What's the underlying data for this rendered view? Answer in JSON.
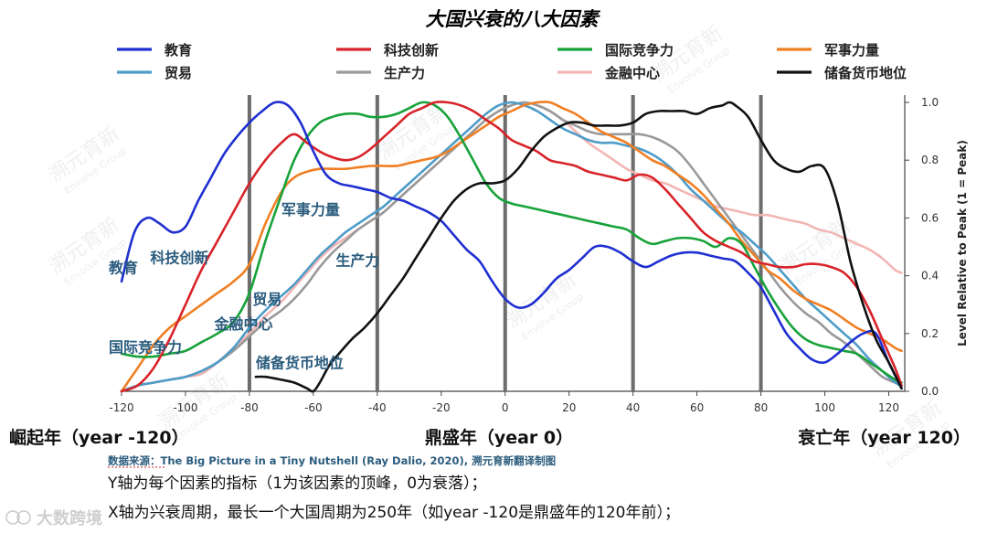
{
  "chart_data": {
    "type": "line",
    "title": "大国兴衰的八大因素",
    "ylabel": "Level Relative to Peak (1 = Peak)",
    "x_ticks": [
      -120,
      -100,
      -80,
      -60,
      -40,
      -20,
      0,
      20,
      40,
      60,
      80,
      100,
      120
    ],
    "y_ticks": [
      "0.0",
      "0.2",
      "0.4",
      "0.6",
      "0.8",
      "1.0"
    ],
    "xlim": [
      -120,
      125
    ],
    "ylim": [
      0,
      1.0
    ],
    "vertical_markers": [
      -80,
      -40,
      0,
      40,
      80
    ],
    "legend_position": "top",
    "series": [
      {
        "name": "教育",
        "color": "#1f2fd0",
        "x": [
          -120,
          -116,
          -112,
          -108,
          -104,
          -100,
          -96,
          -92,
          -88,
          -84,
          -80,
          -76,
          -72,
          -68,
          -64,
          -60,
          -56,
          -52,
          -48,
          -44,
          -40,
          -36,
          -32,
          -28,
          -24,
          -20,
          -16,
          -12,
          -8,
          -4,
          0,
          4,
          8,
          12,
          16,
          20,
          24,
          28,
          32,
          36,
          40,
          44,
          48,
          52,
          56,
          60,
          64,
          68,
          72,
          76,
          80,
          84,
          88,
          92,
          96,
          100,
          104,
          108,
          112,
          116,
          120,
          124
        ],
        "y": [
          0.38,
          0.55,
          0.6,
          0.58,
          0.55,
          0.57,
          0.66,
          0.74,
          0.82,
          0.88,
          0.93,
          0.97,
          1.0,
          0.99,
          0.93,
          0.83,
          0.75,
          0.72,
          0.71,
          0.7,
          0.69,
          0.67,
          0.66,
          0.64,
          0.62,
          0.59,
          0.54,
          0.49,
          0.45,
          0.38,
          0.32,
          0.29,
          0.3,
          0.34,
          0.39,
          0.42,
          0.46,
          0.5,
          0.5,
          0.48,
          0.45,
          0.43,
          0.45,
          0.47,
          0.48,
          0.48,
          0.47,
          0.46,
          0.45,
          0.41,
          0.36,
          0.28,
          0.2,
          0.15,
          0.11,
          0.1,
          0.13,
          0.17,
          0.2,
          0.2,
          0.1,
          0.01
        ]
      },
      {
        "name": "科技创新",
        "color": "#d8232a",
        "x": [
          -120,
          -115,
          -110,
          -105,
          -100,
          -95,
          -90,
          -85,
          -80,
          -75,
          -70,
          -66,
          -62,
          -58,
          -54,
          -50,
          -46,
          -42,
          -38,
          -34,
          -30,
          -26,
          -22,
          -18,
          -14,
          -10,
          -6,
          -2,
          2,
          6,
          10,
          14,
          18,
          22,
          26,
          30,
          34,
          38,
          42,
          46,
          50,
          54,
          58,
          62,
          66,
          70,
          74,
          78,
          82,
          86,
          90,
          94,
          98,
          102,
          106,
          110,
          114,
          118,
          122,
          124
        ],
        "y": [
          0.0,
          0.02,
          0.08,
          0.18,
          0.3,
          0.42,
          0.52,
          0.62,
          0.72,
          0.8,
          0.86,
          0.89,
          0.86,
          0.83,
          0.81,
          0.8,
          0.81,
          0.84,
          0.88,
          0.92,
          0.96,
          0.98,
          1.0,
          1.0,
          0.99,
          0.97,
          0.94,
          0.91,
          0.87,
          0.85,
          0.83,
          0.8,
          0.79,
          0.78,
          0.76,
          0.75,
          0.74,
          0.73,
          0.75,
          0.74,
          0.7,
          0.65,
          0.6,
          0.55,
          0.52,
          0.5,
          0.48,
          0.45,
          0.44,
          0.43,
          0.43,
          0.44,
          0.44,
          0.43,
          0.41,
          0.36,
          0.28,
          0.18,
          0.08,
          0.02
        ]
      },
      {
        "name": "国际竞争力",
        "color": "#18a23a",
        "x": [
          -120,
          -115,
          -110,
          -105,
          -100,
          -95,
          -90,
          -85,
          -80,
          -75,
          -70,
          -66,
          -62,
          -58,
          -54,
          -50,
          -46,
          -42,
          -38,
          -34,
          -30,
          -26,
          -22,
          -18,
          -14,
          -10,
          -6,
          -2,
          2,
          6,
          10,
          14,
          18,
          22,
          26,
          30,
          34,
          38,
          42,
          46,
          50,
          54,
          58,
          62,
          66,
          70,
          74,
          78,
          82,
          86,
          90,
          94,
          98,
          102,
          106,
          110,
          114,
          118,
          122,
          124
        ],
        "y": [
          0.13,
          0.12,
          0.12,
          0.13,
          0.14,
          0.17,
          0.2,
          0.24,
          0.34,
          0.52,
          0.68,
          0.8,
          0.88,
          0.93,
          0.95,
          0.96,
          0.96,
          0.95,
          0.95,
          0.96,
          0.98,
          1.0,
          0.99,
          0.95,
          0.88,
          0.8,
          0.72,
          0.67,
          0.65,
          0.64,
          0.63,
          0.62,
          0.61,
          0.6,
          0.59,
          0.58,
          0.57,
          0.56,
          0.53,
          0.51,
          0.52,
          0.53,
          0.53,
          0.52,
          0.5,
          0.53,
          0.51,
          0.43,
          0.35,
          0.28,
          0.22,
          0.18,
          0.16,
          0.15,
          0.14,
          0.13,
          0.1,
          0.07,
          0.04,
          0.03
        ]
      },
      {
        "name": "军事力量",
        "color": "#f07f23",
        "x": [
          -120,
          -115,
          -110,
          -105,
          -100,
          -95,
          -90,
          -85,
          -80,
          -75,
          -70,
          -66,
          -62,
          -58,
          -54,
          -50,
          -46,
          -42,
          -38,
          -34,
          -30,
          -26,
          -22,
          -18,
          -14,
          -10,
          -6,
          -2,
          2,
          6,
          10,
          14,
          18,
          22,
          26,
          30,
          34,
          38,
          42,
          46,
          50,
          54,
          58,
          62,
          66,
          70,
          74,
          78,
          82,
          86,
          90,
          94,
          98,
          102,
          106,
          110,
          114,
          118,
          122,
          124
        ],
        "y": [
          0.0,
          0.08,
          0.16,
          0.22,
          0.26,
          0.3,
          0.34,
          0.38,
          0.44,
          0.58,
          0.69,
          0.74,
          0.76,
          0.77,
          0.77,
          0.77,
          0.775,
          0.78,
          0.78,
          0.78,
          0.79,
          0.8,
          0.81,
          0.83,
          0.86,
          0.89,
          0.92,
          0.95,
          0.97,
          0.99,
          1.0,
          1.0,
          0.98,
          0.96,
          0.93,
          0.9,
          0.88,
          0.86,
          0.83,
          0.8,
          0.78,
          0.75,
          0.72,
          0.68,
          0.63,
          0.58,
          0.52,
          0.47,
          0.42,
          0.39,
          0.35,
          0.32,
          0.3,
          0.28,
          0.25,
          0.22,
          0.2,
          0.18,
          0.15,
          0.14
        ]
      },
      {
        "name": "贸易",
        "color": "#4e9cc8",
        "x": [
          -120,
          -115,
          -110,
          -105,
          -100,
          -95,
          -90,
          -85,
          -80,
          -75,
          -70,
          -66,
          -62,
          -58,
          -54,
          -50,
          -46,
          -42,
          -38,
          -34,
          -30,
          -26,
          -22,
          -18,
          -14,
          -10,
          -6,
          -2,
          2,
          6,
          10,
          14,
          18,
          22,
          26,
          30,
          34,
          38,
          42,
          46,
          50,
          54,
          58,
          62,
          66,
          70,
          74,
          78,
          82,
          86,
          90,
          94,
          98,
          102,
          106,
          110,
          114,
          118,
          122,
          124
        ],
        "y": [
          0.0,
          0.02,
          0.03,
          0.04,
          0.05,
          0.07,
          0.1,
          0.15,
          0.22,
          0.28,
          0.33,
          0.37,
          0.42,
          0.47,
          0.51,
          0.55,
          0.58,
          0.61,
          0.64,
          0.68,
          0.72,
          0.76,
          0.8,
          0.84,
          0.88,
          0.92,
          0.96,
          0.99,
          1.0,
          0.99,
          0.97,
          0.94,
          0.91,
          0.89,
          0.87,
          0.86,
          0.86,
          0.85,
          0.84,
          0.82,
          0.79,
          0.75,
          0.7,
          0.66,
          0.62,
          0.58,
          0.55,
          0.51,
          0.47,
          0.42,
          0.37,
          0.32,
          0.28,
          0.24,
          0.2,
          0.16,
          0.11,
          0.07,
          0.03,
          0.02
        ]
      },
      {
        "name": "生产力",
        "color": "#999999",
        "x": [
          -120,
          -115,
          -110,
          -105,
          -100,
          -95,
          -90,
          -85,
          -80,
          -75,
          -70,
          -66,
          -62,
          -58,
          -54,
          -50,
          -46,
          -42,
          -38,
          -34,
          -30,
          -26,
          -22,
          -18,
          -14,
          -10,
          -6,
          -2,
          2,
          6,
          10,
          14,
          18,
          22,
          26,
          30,
          34,
          38,
          42,
          46,
          50,
          54,
          58,
          62,
          66,
          70,
          74,
          78,
          82,
          86,
          90,
          94,
          98,
          102,
          106,
          110,
          114,
          118,
          122,
          124
        ],
        "y": [
          0.0,
          0.02,
          0.03,
          0.04,
          0.05,
          0.07,
          0.1,
          0.14,
          0.19,
          0.24,
          0.28,
          0.32,
          0.37,
          0.43,
          0.48,
          0.52,
          0.56,
          0.59,
          0.62,
          0.66,
          0.7,
          0.74,
          0.78,
          0.82,
          0.86,
          0.9,
          0.94,
          0.97,
          0.99,
          1.0,
          0.99,
          0.97,
          0.94,
          0.92,
          0.9,
          0.89,
          0.89,
          0.89,
          0.89,
          0.88,
          0.86,
          0.83,
          0.78,
          0.72,
          0.66,
          0.6,
          0.54,
          0.48,
          0.42,
          0.36,
          0.31,
          0.27,
          0.24,
          0.2,
          0.17,
          0.13,
          0.09,
          0.05,
          0.03,
          0.02
        ]
      },
      {
        "name": "金融中心",
        "color": "#f2b6b4",
        "x": [
          -120,
          -115,
          -110,
          -105,
          -100,
          -95,
          -90,
          -85,
          -80,
          -75,
          -70,
          -66,
          -62,
          -58,
          -54,
          -50,
          -46,
          -42,
          -38,
          -34,
          -30,
          -26,
          -22,
          -18,
          -14,
          -10,
          -6,
          -2,
          2,
          6,
          10,
          14,
          18,
          22,
          26,
          30,
          34,
          38,
          42,
          46,
          50,
          54,
          58,
          62,
          66,
          70,
          74,
          78,
          82,
          86,
          90,
          94,
          98,
          102,
          106,
          110,
          114,
          118,
          122,
          124
        ],
        "y": [
          0.0,
          0.02,
          0.03,
          0.04,
          0.05,
          0.06,
          0.1,
          0.15,
          0.2,
          0.26,
          0.31,
          0.36,
          0.41,
          0.46,
          0.5,
          0.53,
          0.56,
          0.59,
          0.62,
          0.66,
          0.7,
          0.74,
          0.78,
          0.82,
          0.86,
          0.9,
          0.94,
          0.97,
          0.99,
          1.0,
          0.99,
          0.97,
          0.94,
          0.9,
          0.86,
          0.83,
          0.8,
          0.77,
          0.75,
          0.73,
          0.72,
          0.7,
          0.68,
          0.66,
          0.64,
          0.63,
          0.62,
          0.61,
          0.61,
          0.6,
          0.59,
          0.58,
          0.56,
          0.55,
          0.53,
          0.51,
          0.49,
          0.46,
          0.42,
          0.41
        ]
      },
      {
        "name": "储备货币地位",
        "color": "#111111",
        "x": [
          -78,
          -75,
          -70,
          -66,
          -62,
          -60,
          -58,
          -55,
          -52,
          -48,
          -44,
          -40,
          -36,
          -32,
          -28,
          -24,
          -20,
          -16,
          -12,
          -8,
          -4,
          0,
          4,
          8,
          12,
          16,
          20,
          24,
          28,
          32,
          36,
          40,
          44,
          48,
          52,
          56,
          60,
          64,
          68,
          70,
          72,
          76,
          80,
          84,
          88,
          92,
          96,
          100,
          104,
          108,
          112,
          116,
          120,
          124
        ],
        "y": [
          0.05,
          0.05,
          0.04,
          0.03,
          0.01,
          0.0,
          0.03,
          0.09,
          0.13,
          0.18,
          0.22,
          0.27,
          0.33,
          0.39,
          0.46,
          0.53,
          0.6,
          0.66,
          0.7,
          0.72,
          0.72,
          0.73,
          0.77,
          0.83,
          0.88,
          0.91,
          0.93,
          0.93,
          0.92,
          0.92,
          0.92,
          0.93,
          0.96,
          0.97,
          0.97,
          0.97,
          0.96,
          0.98,
          0.99,
          1.0,
          0.99,
          0.95,
          0.87,
          0.8,
          0.77,
          0.76,
          0.78,
          0.77,
          0.65,
          0.45,
          0.3,
          0.18,
          0.1,
          0.01
        ]
      }
    ],
    "annotations": [
      {
        "text": "教育",
        "x": -124,
        "y": 0.41
      },
      {
        "text": "科技创新",
        "x": -111,
        "y": 0.445
      },
      {
        "text": "军事力量",
        "x": -70,
        "y": 0.61
      },
      {
        "text": "生产力",
        "x": -53,
        "y": 0.435
      },
      {
        "text": "贸易",
        "x": -79,
        "y": 0.3
      },
      {
        "text": "金融中心",
        "x": -91,
        "y": 0.215
      },
      {
        "text": "国际竞争力",
        "x": -124,
        "y": 0.135
      },
      {
        "text": "储备货币地位",
        "x": -78,
        "y": 0.08
      }
    ]
  },
  "stages": {
    "rise": "崛起年（year -120）",
    "peak": "鼎盛年（year 0）",
    "decline": "衰亡年（year 120）"
  },
  "source_text": "数据来源：The Big Picture in a Tiny Nutshell (Ray Dalio, 2020), 溯元育新翻译制图",
  "notes": [
    "Y轴为每个因素的指标（1为该因素的顶峰，0为衰落）；",
    "X轴为兴衰周期，最长一个大国周期为250年（如year -120是鼎盛年的120年前）；"
  ],
  "watermark_text": "溯元育新",
  "watermark_sub": "Envolve Group",
  "corner_brand": "大数跨境"
}
